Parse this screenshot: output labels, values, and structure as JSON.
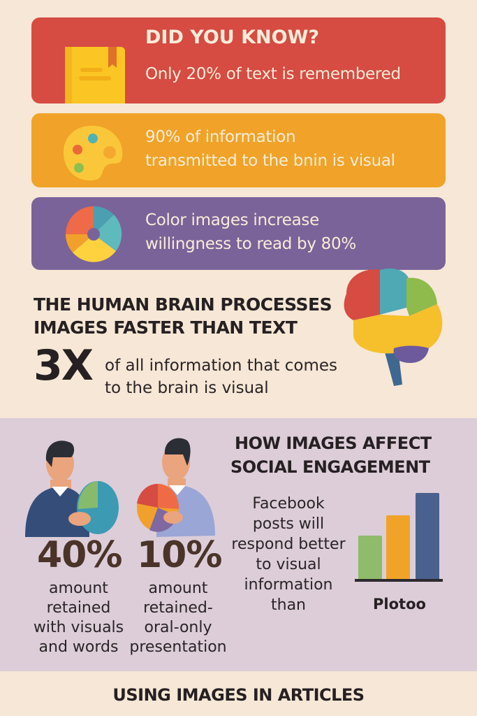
{
  "cards": [
    {
      "title": "DID YOU KNOW?",
      "text": "Only 20% of text is remembered",
      "color": "#d64b42",
      "icon": "book-icon"
    },
    {
      "line1": "90% of information",
      "line2": "transmitted to the bnin is visual",
      "color": "#f0a328",
      "icon": "palette-icon"
    },
    {
      "line1": "Color images increase",
      "line2": "willingness to read by 80%",
      "color": "#7a6399",
      "icon": "pie-chart-icon"
    }
  ],
  "brain": {
    "heading1": "THE HUMAN BRAIN PROCESSES",
    "heading2": "IMAGES FASTER THAN TEXT",
    "stat": "3X",
    "text1": "of all information that comes",
    "text2": "to the brain is visual",
    "icon": "brain-icon"
  },
  "engagement": {
    "people": [
      {
        "stat": "40%",
        "lines": [
          "amount",
          "retained",
          "with visuals",
          "and words"
        ]
      },
      {
        "stat": "10%",
        "lines": [
          "amount",
          "retained-",
          "oral-only",
          "presentation"
        ]
      }
    ],
    "heading1": "HOW IMAGES AFFECT",
    "heading2": "SOCIAL ENGAGEMENT",
    "facebook_lines": [
      "Facebook",
      "posts will",
      "respond better",
      "to visual",
      "information",
      "than"
    ],
    "chart_label": "Plotoo"
  },
  "footer": {
    "heading": "USING IMAGES IN ARTICLES"
  }
}
